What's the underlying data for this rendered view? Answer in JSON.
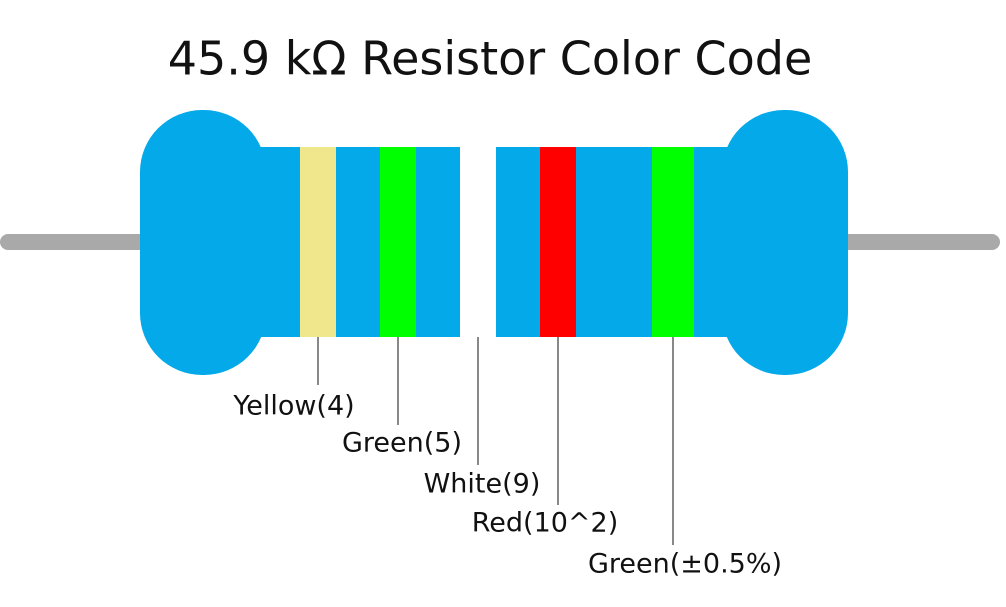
{
  "title": "45.9 kΩ Resistor Color Code",
  "bands": [
    {
      "label": "Yellow(4)",
      "color": "#f0e68c"
    },
    {
      "label": "Green(5)",
      "color": "#00ff00"
    },
    {
      "label": "White(9)",
      "color": "#ffffff"
    },
    {
      "label": "Red(10^2)",
      "color": "#ff0000"
    },
    {
      "label": "Green(±0.5%)",
      "color": "#00ff00"
    }
  ]
}
